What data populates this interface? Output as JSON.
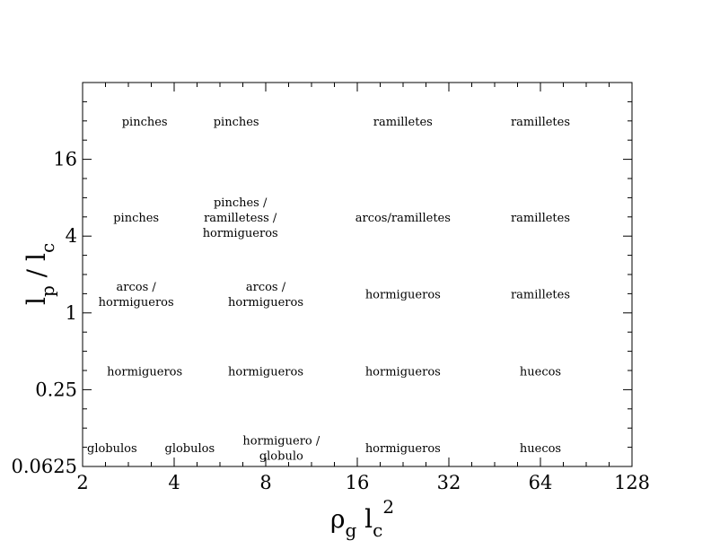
{
  "chart_data": {
    "type": "scatter",
    "x_scale": "log2",
    "y_scale": "log2",
    "xlim": [
      2,
      128
    ],
    "ylim": [
      0.0625,
      64
    ],
    "x_ticks": [
      2,
      4,
      8,
      16,
      32,
      64,
      128
    ],
    "x_tick_labels": [
      "2",
      "4",
      "8",
      "16",
      "32",
      "64",
      "128"
    ],
    "y_ticks": [
      0.0625,
      0.25,
      1,
      4,
      16
    ],
    "y_tick_labels": [
      "0.0625",
      "0.25",
      "1",
      "4",
      "16"
    ],
    "xlabel": {
      "base": "ρ",
      "sub": "g",
      "mid": " l",
      "sub2": "c",
      "sup": "2"
    },
    "ylabel": {
      "base": "l",
      "sub": "p",
      "mid": " / l",
      "sub2": "c"
    },
    "grid": false,
    "annotations": [
      {
        "x": 3.2,
        "y": 32,
        "lines": [
          "pinches"
        ]
      },
      {
        "x": 6.4,
        "y": 32,
        "lines": [
          "pinches"
        ]
      },
      {
        "x": 22.6,
        "y": 32,
        "lines": [
          "ramilletes"
        ]
      },
      {
        "x": 64,
        "y": 32,
        "lines": [
          "ramilletes"
        ]
      },
      {
        "x": 3.0,
        "y": 5.66,
        "lines": [
          "pinches"
        ]
      },
      {
        "x": 6.6,
        "y": 5.66,
        "lines": [
          "pinches /",
          "ramilletess /",
          "hormigueros"
        ]
      },
      {
        "x": 22.6,
        "y": 5.66,
        "lines": [
          "arcos/ramilletes"
        ]
      },
      {
        "x": 64,
        "y": 5.66,
        "lines": [
          "ramilletes"
        ]
      },
      {
        "x": 3.0,
        "y": 1.41,
        "lines": [
          "arcos /",
          "hormigueros"
        ]
      },
      {
        "x": 8.0,
        "y": 1.41,
        "lines": [
          "arcos /",
          "hormigueros"
        ]
      },
      {
        "x": 22.6,
        "y": 1.41,
        "lines": [
          "hormigueros"
        ]
      },
      {
        "x": 64,
        "y": 1.41,
        "lines": [
          "ramilletes"
        ]
      },
      {
        "x": 3.2,
        "y": 0.35,
        "lines": [
          "hormigueros"
        ]
      },
      {
        "x": 8.0,
        "y": 0.35,
        "lines": [
          "hormigueros"
        ]
      },
      {
        "x": 22.6,
        "y": 0.35,
        "lines": [
          "hormigueros"
        ]
      },
      {
        "x": 64,
        "y": 0.35,
        "lines": [
          "huecos"
        ]
      },
      {
        "x": 2.5,
        "y": 0.088,
        "lines": [
          "globulos"
        ]
      },
      {
        "x": 4.5,
        "y": 0.088,
        "lines": [
          "globulos"
        ]
      },
      {
        "x": 9.0,
        "y": 0.088,
        "lines": [
          "hormiguero /",
          "globulo"
        ]
      },
      {
        "x": 22.6,
        "y": 0.088,
        "lines": [
          "hormigueros"
        ]
      },
      {
        "x": 64,
        "y": 0.088,
        "lines": [
          "huecos"
        ]
      }
    ]
  }
}
